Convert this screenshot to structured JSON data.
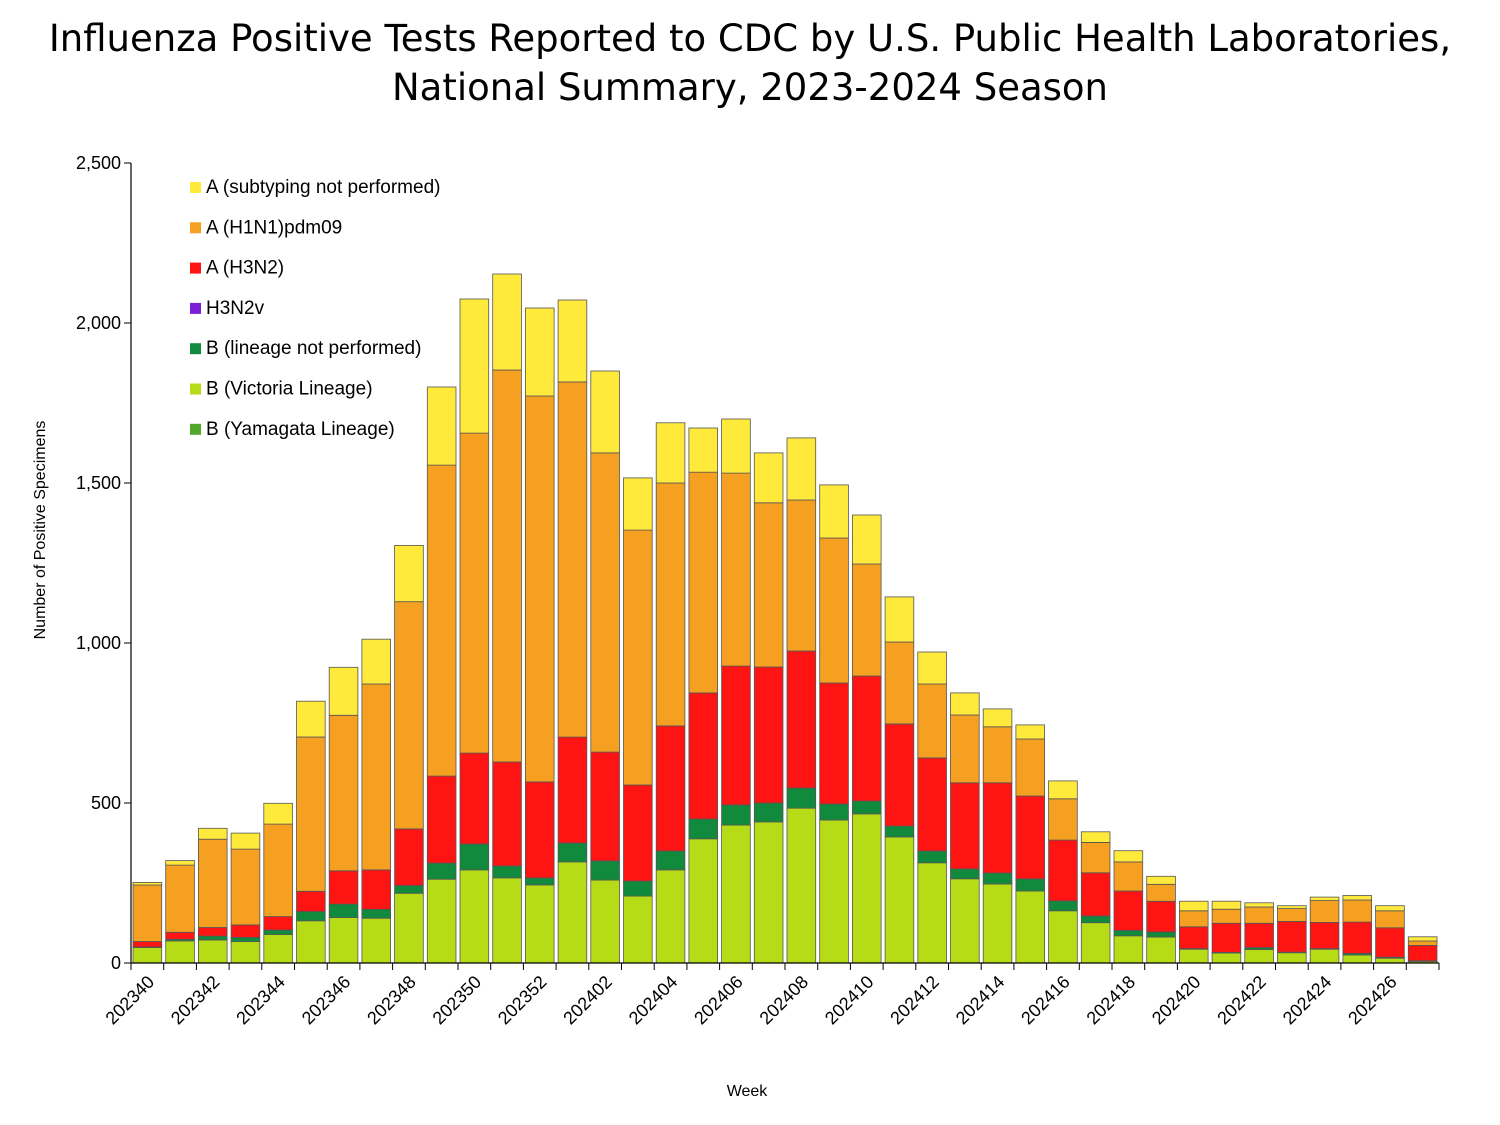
{
  "chart_data": {
    "type": "bar",
    "stacked": true,
    "title": "Influenza Positive Tests Reported to CDC by U.S. Public Health Laboratories, National Summary, 2023-2024 Season",
    "title_line1": "Influenza Positive Tests Reported to CDC by U.S. Public Health Laboratories,",
    "title_line2": "National Summary, 2023-2024 Season",
    "xlabel": "Week",
    "ylabel": "Number of Positive Specimens",
    "ylim": [
      0,
      2500
    ],
    "yticks": [
      0,
      500,
      1000,
      1500,
      2000,
      2500
    ],
    "ytick_labels": [
      "0",
      "500",
      "1,000",
      "1,500",
      "2,000",
      "2,500"
    ],
    "grid": false,
    "legend_position": "top-left",
    "categories": [
      "202340",
      "202341",
      "202342",
      "202343",
      "202344",
      "202345",
      "202346",
      "202347",
      "202348",
      "202349",
      "202350",
      "202351",
      "202352",
      "202401",
      "202402",
      "202403",
      "202404",
      "202405",
      "202406",
      "202407",
      "202408",
      "202409",
      "202410",
      "202411",
      "202412",
      "202413",
      "202414",
      "202415",
      "202416",
      "202417",
      "202418",
      "202419",
      "202420",
      "202421",
      "202422",
      "202423",
      "202424",
      "202425",
      "202426",
      "202427"
    ],
    "xtick_labels_shown": [
      "202340",
      "202342",
      "202344",
      "202346",
      "202348",
      "202350",
      "202352",
      "202402",
      "202404",
      "202406",
      "202408",
      "202410",
      "202412",
      "202414",
      "202416",
      "202418",
      "202420",
      "202422",
      "202424",
      "202426"
    ],
    "series": [
      {
        "name": "B (Victoria Lineage)",
        "color": "#B5DC17",
        "values": [
          48,
          69,
          72,
          67,
          89,
          132,
          142,
          140,
          218,
          262,
          291,
          266,
          244,
          316,
          259,
          209,
          291,
          388,
          431,
          441,
          484,
          447,
          466,
          394,
          313,
          263,
          247,
          225,
          163,
          126,
          85,
          81,
          43,
          31,
          42,
          32,
          43,
          25,
          15,
          5
        ]
      },
      {
        "name": "B (Yamagata Lineage)",
        "color": "#4FA82A",
        "values": [
          0,
          0,
          0,
          0,
          0,
          0,
          0,
          0,
          0,
          0,
          0,
          0,
          0,
          0,
          0,
          0,
          0,
          0,
          0,
          0,
          0,
          0,
          0,
          0,
          0,
          0,
          0,
          0,
          0,
          0,
          0,
          0,
          0,
          0,
          0,
          0,
          0,
          0,
          0,
          0
        ]
      },
      {
        "name": "B (lineage not performed)",
        "color": "#118A3E",
        "values": [
          2,
          5,
          12,
          13,
          14,
          29,
          42,
          28,
          24,
          50,
          81,
          37,
          22,
          59,
          60,
          47,
          59,
          62,
          63,
          59,
          63,
          50,
          40,
          34,
          37,
          31,
          34,
          38,
          31,
          21,
          17,
          16,
          2,
          2,
          6,
          2,
          2,
          5,
          3,
          2
        ]
      },
      {
        "name": "H3N2v",
        "color": "#7A1FD6",
        "values": [
          0,
          0,
          0,
          0,
          0,
          0,
          0,
          0,
          0,
          0,
          0,
          0,
          0,
          0,
          0,
          0,
          0,
          0,
          0,
          0,
          0,
          0,
          0,
          0,
          0,
          0,
          0,
          0,
          0,
          0,
          0,
          0,
          0,
          0,
          0,
          0,
          0,
          0,
          0,
          0
        ]
      },
      {
        "name": "A (H3N2)",
        "color": "#FF1414",
        "values": [
          17,
          22,
          27,
          39,
          42,
          63,
          104,
          123,
          177,
          272,
          284,
          325,
          300,
          331,
          340,
          300,
          391,
          394,
          434,
          425,
          428,
          378,
          391,
          319,
          291,
          269,
          282,
          259,
          190,
          135,
          123,
          96,
          68,
          91,
          76,
          96,
          82,
          98,
          92,
          48
        ]
      },
      {
        "name": "A (H1N1)pdm09",
        "color": "#F5A020",
        "values": [
          177,
          210,
          276,
          237,
          289,
          482,
          486,
          581,
          710,
          972,
          1000,
          1225,
          1206,
          1110,
          935,
          797,
          759,
          690,
          603,
          513,
          472,
          453,
          350,
          256,
          231,
          212,
          175,
          178,
          129,
          95,
          91,
          53,
          50,
          44,
          51,
          40,
          68,
          69,
          53,
          14
        ]
      },
      {
        "name": "A (subtyping not performed)",
        "color": "#FFEA3C",
        "values": [
          8,
          14,
          34,
          50,
          65,
          112,
          150,
          140,
          176,
          244,
          419,
          300,
          275,
          256,
          256,
          163,
          188,
          138,
          169,
          156,
          194,
          166,
          153,
          141,
          100,
          69,
          56,
          44,
          56,
          33,
          35,
          25,
          30,
          25,
          13,
          9,
          11,
          14,
          16,
          13
        ]
      }
    ],
    "legend_order": [
      "A (subtyping not performed)",
      "A (H1N1)pdm09",
      "A (H3N2)",
      "H3N2v",
      "B (lineage not performed)",
      "B (Victoria Lineage)",
      "B (Yamagata Lineage)"
    ]
  }
}
